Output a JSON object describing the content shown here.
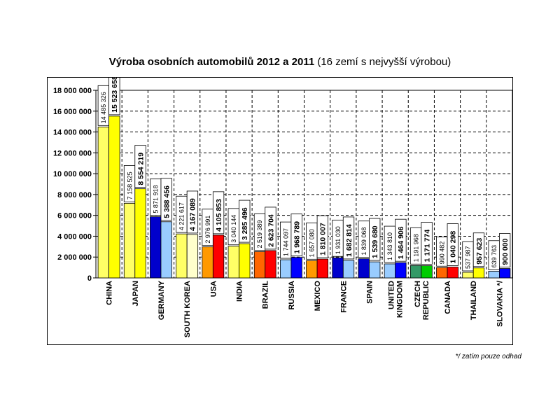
{
  "chart_data": {
    "type": "bar",
    "title": "Výroba osobních automobilů 2012 a 2011",
    "subtitle": "(16 zemí s nejvyšší výrobou)",
    "footnote": "*/ zatím pouze odhad",
    "ylim": [
      0,
      18000000
    ],
    "yticks": [
      0,
      2000000,
      4000000,
      6000000,
      8000000,
      10000000,
      12000000,
      14000000,
      16000000,
      18000000
    ],
    "ytick_labels": [
      "0",
      "2 000 000",
      "4 000 000",
      "6 000 000",
      "8 000 000",
      "10 000 000",
      "12 000 000",
      "14 000 000",
      "16 000 000",
      "18 000 000"
    ],
    "grid": true,
    "legend": "none",
    "categories": [
      {
        "name": "CHINA",
        "lines": [
          "CHINA"
        ]
      },
      {
        "name": "JAPAN",
        "lines": [
          "JAPAN"
        ]
      },
      {
        "name": "GERMANY",
        "lines": [
          "GERMANY"
        ]
      },
      {
        "name": "SOUTH KOREA",
        "lines": [
          "SOUTH KOREA"
        ]
      },
      {
        "name": "USA",
        "lines": [
          "USA"
        ]
      },
      {
        "name": "INDIA",
        "lines": [
          "INDIA"
        ]
      },
      {
        "name": "BRAZIL",
        "lines": [
          "BRAZIL"
        ]
      },
      {
        "name": "RUSSIA",
        "lines": [
          "RUSSIA"
        ]
      },
      {
        "name": "MEXICO",
        "lines": [
          "MEXICO"
        ]
      },
      {
        "name": "FRANCE",
        "lines": [
          "FRANCE"
        ]
      },
      {
        "name": "SPAIN",
        "lines": [
          "SPAIN"
        ]
      },
      {
        "name": "UNITED KINGDOM",
        "lines": [
          "UNITED",
          "KINGDOM"
        ]
      },
      {
        "name": "CZECH REPUBLIC",
        "lines": [
          "CZECH",
          "REPUBLIC"
        ]
      },
      {
        "name": "CANADA",
        "lines": [
          "CANADA"
        ]
      },
      {
        "name": "THAILAND",
        "lines": [
          "THAILAND"
        ]
      },
      {
        "name": "SLOVAKIA */",
        "lines": [
          "SLOVAKIA */"
        ]
      }
    ],
    "series": [
      {
        "year": 2011,
        "values": [
          14485326,
          7158525,
          5871918,
          4221617,
          2976991,
          3040144,
          2519389,
          1744097,
          1657080,
          1931030,
          1839068,
          1343810,
          1191968,
          990482,
          537987,
          639763
        ],
        "value_labels": [
          "14 485 326",
          "7 158 525",
          "5 871 918",
          "4 221 617",
          "2 976 991",
          "3 040 144",
          "2 519 389",
          "1 744 097",
          "1 657 080",
          "1 931 030",
          "1 839 068",
          "1 343 810",
          "1 191 968",
          "990 482",
          "537 987",
          "639 763"
        ],
        "colors": [
          "#FFFF66",
          "#FFFF66",
          "#0000CC",
          "#FFFF66",
          "#FF9900",
          "#FFFF66",
          "#FF6600",
          "#99CCFF",
          "#FF9900",
          "#0000CC",
          "#0000CC",
          "#99CCFF",
          "#339966",
          "#FF6600",
          "#FFFF66",
          "#99CCFF"
        ]
      },
      {
        "year": 2012,
        "values": [
          15523658,
          8554219,
          5388456,
          4167089,
          4105853,
          3285496,
          2623704,
          1968789,
          1810007,
          1682814,
          1539680,
          1464906,
          1171774,
          1040298,
          957623,
          900000
        ],
        "value_labels": [
          "15 523 658",
          "8 554 219",
          "5 388 456",
          "4 167 089",
          "4 105 853",
          "3 285 496",
          "2 623 704",
          "1 968 789",
          "1 810 007",
          "1 682 814",
          "1 539 680",
          "1 464 906",
          "1 171 774",
          "1 040 298",
          "957 623",
          "900 000"
        ],
        "colors": [
          "#FFFF00",
          "#FFFF00",
          "#99CCFF",
          "#FFFFCC",
          "#FF0000",
          "#FFFF00",
          "#FF0000",
          "#0000FF",
          "#FF0000",
          "#99CCFF",
          "#99CCFF",
          "#0000FF",
          "#00CC00",
          "#FF0000",
          "#FFFF00",
          "#0000FF"
        ]
      }
    ]
  }
}
